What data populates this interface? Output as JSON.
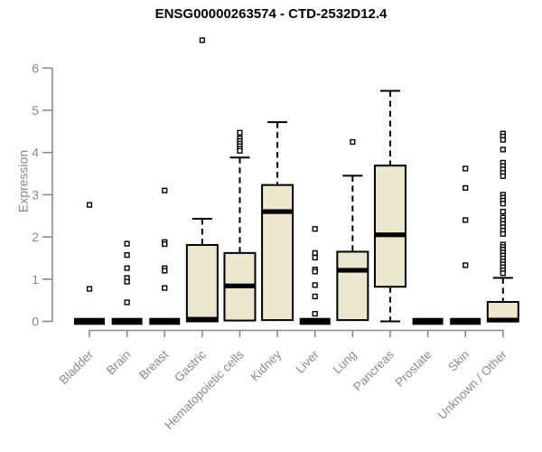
{
  "page": {
    "background": "#FFFFFF"
  },
  "chart_data": {
    "type": "box",
    "title": "ENSG00000263574 - CTD-2532D12.4",
    "ylabel": "Expression",
    "xlabel": "",
    "ylim": [
      0,
      6.8
    ],
    "yticks": [
      0,
      1,
      2,
      3,
      4,
      5,
      6
    ],
    "grid": false,
    "legend": false,
    "outlier_marker": "open-square",
    "colors": {
      "box_fill": "#EDE8CD",
      "box_stroke": "#000000",
      "median": "#000000",
      "whisker": "#000000",
      "axis": "#8A8A8A",
      "tick_label": "#8A8A8A",
      "title": "#000000",
      "background": "#FFFFFF"
    },
    "categories": [
      "Bladder",
      "Brain",
      "Breast",
      "Gastric",
      "Hematopoietic cells",
      "Kidney",
      "Liver",
      "Lung",
      "Pancreas",
      "Prostate",
      "Skin",
      "Unknown / Other"
    ],
    "groups": [
      {
        "label": "Bladder",
        "type": "flat",
        "q1": 0,
        "median": 0,
        "q3": 0,
        "whisker_low": 0,
        "whisker_high": 0,
        "outliers": [
          2.76,
          0.77
        ]
      },
      {
        "label": "Brain",
        "type": "flat",
        "q1": 0,
        "median": 0,
        "q3": 0,
        "whisker_low": 0,
        "whisker_high": 0,
        "outliers": [
          1.84,
          1.57,
          1.26,
          1.03,
          0.94,
          0.45
        ]
      },
      {
        "label": "Breast",
        "type": "flat",
        "q1": 0,
        "median": 0,
        "q3": 0,
        "whisker_low": 0,
        "whisker_high": 0,
        "outliers": [
          3.1,
          1.88,
          1.83,
          1.26,
          1.2,
          0.79
        ]
      },
      {
        "label": "Gastric",
        "type": "box",
        "q1": 0,
        "median": 0.05,
        "q3": 1.81,
        "whisker_low": 0,
        "whisker_high": 2.43,
        "outliers": [
          6.66
        ]
      },
      {
        "label": "Hematopoietic cells",
        "type": "box",
        "q1": 0.02,
        "median": 0.84,
        "q3": 1.62,
        "whisker_low": 0.02,
        "whisker_high": 3.88,
        "outliers": [
          4.47,
          4.33,
          4.27,
          4.21,
          4.15,
          4.09,
          4.04
        ]
      },
      {
        "label": "Kidney",
        "type": "box",
        "q1": 0.03,
        "median": 2.6,
        "q3": 3.23,
        "whisker_low": 0.03,
        "whisker_high": 4.72,
        "outliers": []
      },
      {
        "label": "Liver",
        "type": "flat",
        "q1": 0,
        "median": 0,
        "q3": 0,
        "whisker_low": 0,
        "whisker_high": 0,
        "outliers": [
          2.19,
          1.62,
          1.51,
          1.23,
          1.18,
          0.86,
          0.59,
          0.18
        ]
      },
      {
        "label": "Lung",
        "type": "box",
        "q1": 0.03,
        "median": 1.21,
        "q3": 1.65,
        "whisker_low": 0.03,
        "whisker_high": 3.45,
        "outliers": [
          4.25
        ]
      },
      {
        "label": "Pancreas",
        "type": "box",
        "q1": 0.82,
        "median": 2.05,
        "q3": 3.69,
        "whisker_low": 0,
        "whisker_high": 5.46,
        "outliers": []
      },
      {
        "label": "Prostate",
        "type": "flat",
        "q1": 0,
        "median": 0,
        "q3": 0,
        "whisker_low": 0,
        "whisker_high": 0,
        "outliers": []
      },
      {
        "label": "Skin",
        "type": "flat",
        "q1": 0,
        "median": 0,
        "q3": 0,
        "whisker_low": 0,
        "whisker_high": 0,
        "outliers": [
          3.62,
          3.16,
          2.4,
          1.33
        ]
      },
      {
        "label": "Unknown / Other",
        "type": "box",
        "q1": 0,
        "median": 0.03,
        "q3": 0.46,
        "whisker_low": 0,
        "whisker_high": 1.03,
        "outliers": [
          4.45,
          4.38,
          4.3,
          4.07,
          3.76,
          3.68,
          3.6,
          3.52,
          3.44,
          3.0,
          2.93,
          2.86,
          2.79,
          2.6,
          2.46,
          2.39,
          2.31,
          2.23,
          2.15,
          2.07,
          1.82,
          1.76,
          1.7,
          1.63,
          1.56,
          1.49,
          1.42,
          1.35,
          1.28,
          1.21,
          1.14
        ]
      }
    ]
  }
}
